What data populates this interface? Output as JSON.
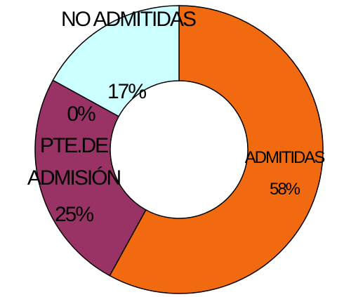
{
  "chart_data": {
    "type": "donut",
    "categories": [
      "ADMITIDAS",
      "PTE.DE ADMISIÓN",
      null,
      "NO ADMITIDAS"
    ],
    "values": [
      58,
      25,
      0,
      17
    ],
    "value_labels": [
      "58%",
      "25%",
      "0%",
      "17%"
    ],
    "colors": [
      "#f26a10",
      "#993366",
      "#ffffff",
      "#ccffff"
    ]
  }
}
